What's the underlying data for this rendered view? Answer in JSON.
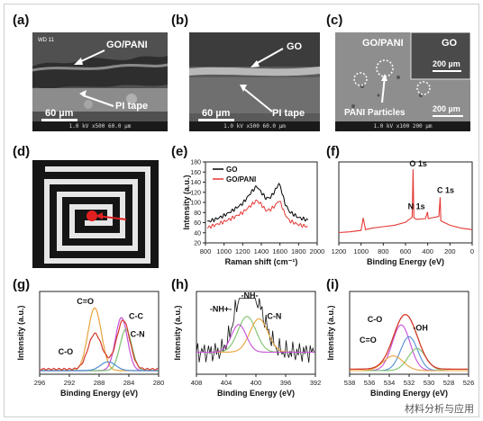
{
  "panels": {
    "a": {
      "label": "(a)",
      "annotations": [
        "GO/PANI",
        "PI tape"
      ],
      "scale": "60 µm",
      "footer": "1.0 kV  x500  60.0 µm",
      "corner": "WD 11"
    },
    "b": {
      "label": "(b)",
      "annotations": [
        "GO",
        "PI tape"
      ],
      "scale": "60 µm",
      "footer": "1.0 kV  x500  60.0 µm"
    },
    "c": {
      "label": "(c)",
      "annotations": [
        "GO/PANI",
        "GO",
        "PANI Particles"
      ],
      "scale_inset": "200 µm",
      "scale": "200 µm",
      "footer": "1.0 kV  x100  200 µm"
    },
    "d": {
      "label": "(d)"
    },
    "e": {
      "label": "(e)"
    },
    "f": {
      "label": "(f)"
    },
    "g": {
      "label": "(g)"
    },
    "h": {
      "label": "(h)"
    },
    "i": {
      "label": "(i)"
    }
  },
  "chart_data": [
    {
      "panel": "e",
      "type": "line",
      "xlabel": "Raman shift (cm⁻¹)",
      "ylabel": "Intensity (a.u.)",
      "xlim": [
        800,
        2000
      ],
      "ylim": [
        20,
        180
      ],
      "xticks": [
        800,
        1000,
        1200,
        1400,
        1600,
        1800,
        2000
      ],
      "yticks": [
        20,
        40,
        60,
        80,
        100,
        120,
        140,
        160,
        180
      ],
      "series": [
        {
          "name": "GO",
          "color": "#000000",
          "x": [
            820,
            900,
            1000,
            1100,
            1200,
            1300,
            1350,
            1400,
            1450,
            1500,
            1550,
            1590,
            1620,
            1650,
            1700,
            1800,
            1900
          ],
          "y": [
            62,
            66,
            74,
            85,
            98,
            122,
            132,
            120,
            108,
            110,
            124,
            138,
            122,
            100,
            82,
            70,
            65
          ]
        },
        {
          "name": "GO/PANI",
          "color": "#e53935",
          "x": [
            820,
            900,
            1000,
            1100,
            1200,
            1300,
            1350,
            1400,
            1450,
            1500,
            1550,
            1590,
            1620,
            1650,
            1700,
            1800,
            1900
          ],
          "y": [
            50,
            55,
            62,
            70,
            80,
            96,
            104,
            96,
            84,
            86,
            94,
            104,
            94,
            78,
            64,
            56,
            52
          ]
        }
      ]
    },
    {
      "panel": "f",
      "type": "line",
      "xlabel": "Binding Energy (eV)",
      "xlim": [
        1200,
        0
      ],
      "xticks": [
        1200,
        1000,
        800,
        600,
        400,
        200,
        0
      ],
      "annotations": [
        "O 1s",
        "C 1s",
        "N 1s"
      ],
      "series": [
        {
          "name": "",
          "color": "#e53935",
          "x": [
            1200,
            1100,
            1000,
            980,
            960,
            900,
            800,
            700,
            600,
            540,
            532,
            525,
            500,
            420,
            402,
            395,
            300,
            288,
            282,
            200,
            100,
            0
          ],
          "y": [
            14,
            15,
            17,
            34,
            18,
            20,
            22,
            24,
            28,
            35,
            100,
            34,
            32,
            33,
            42,
            33,
            36,
            62,
            30,
            24,
            20,
            18
          ]
        }
      ]
    },
    {
      "panel": "g",
      "type": "line",
      "xlabel": "Binding Energy (eV)",
      "ylabel": "Intensity (a.u.)",
      "xlim": [
        296,
        280
      ],
      "xticks": [
        296,
        292,
        288,
        284,
        280
      ],
      "annotations": [
        "C=O",
        "C-C",
        "C-N",
        "C-O"
      ]
    },
    {
      "panel": "h",
      "type": "line",
      "xlabel": "Binding Energy (eV)",
      "ylabel": "Intensity (a.u.)",
      "xlim": [
        408,
        392
      ],
      "xticks": [
        408,
        404,
        400,
        396,
        392
      ],
      "annotations": [
        "-NH-",
        "-NH+-",
        "C-N"
      ]
    },
    {
      "panel": "i",
      "type": "line",
      "xlabel": "Binding Energy (eV)",
      "ylabel": "Intensity (a.u.)",
      "xlim": [
        538,
        526
      ],
      "xticks": [
        538,
        536,
        534,
        532,
        530,
        528,
        526
      ],
      "annotations": [
        "C-O",
        "-OH",
        "C=O"
      ]
    }
  ],
  "watermark": "材料分析与应用"
}
